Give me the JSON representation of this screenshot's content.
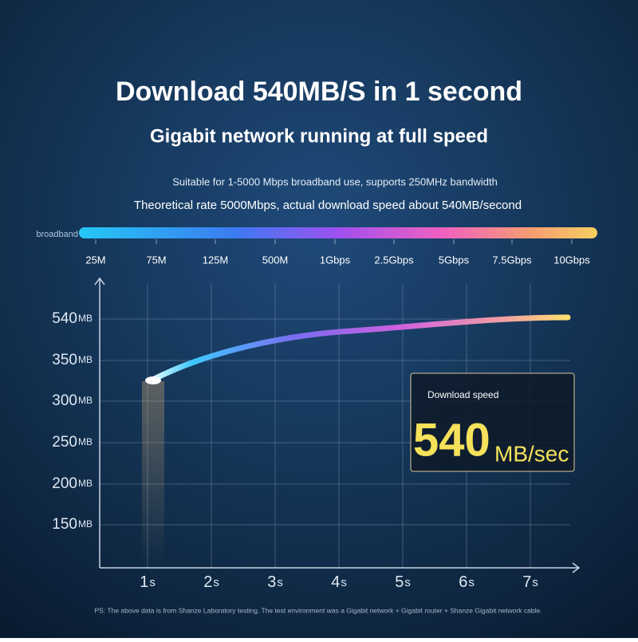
{
  "header": {
    "title": "Download 540MB/S in 1 second",
    "subtitle": "Gigabit network running at full speed",
    "lines": [
      "Suitable for 1-5000 Mbps broadband use, supports 250MHz bandwidth",
      "Theoretical rate 5000Mbps, actual download speed about 540MB/second"
    ]
  },
  "broadband": {
    "label": "broadband",
    "ticks": [
      "25M",
      "75M",
      "125M",
      "500M",
      "1Gbps",
      "2.5Gbps",
      "5Gbps",
      "7.5Gbps",
      "10Gbps"
    ]
  },
  "chart": {
    "y_labels": [
      {
        "number": "540",
        "unit": "MB"
      },
      {
        "number": "350",
        "unit": "MB"
      },
      {
        "number": "300",
        "unit": "MB"
      },
      {
        "number": "250",
        "unit": "MB"
      },
      {
        "number": "200",
        "unit": "MB"
      },
      {
        "number": "150",
        "unit": "MB"
      }
    ],
    "x_labels": [
      {
        "number": "1",
        "unit": "s"
      },
      {
        "number": "2",
        "unit": "s"
      },
      {
        "number": "3",
        "unit": "s"
      },
      {
        "number": "4",
        "unit": "s"
      },
      {
        "number": "5",
        "unit": "s"
      },
      {
        "number": "6",
        "unit": "s"
      },
      {
        "number": "7",
        "unit": "s"
      }
    ]
  },
  "callout": {
    "label": "Download speed",
    "number": "540",
    "unit": "MB/sec"
  },
  "footnote": "PS: The above data is from Shanze Laboratory testing. The test environment was a Gigabit network + Gigabit router + Shanze Gigabit network cable."
}
